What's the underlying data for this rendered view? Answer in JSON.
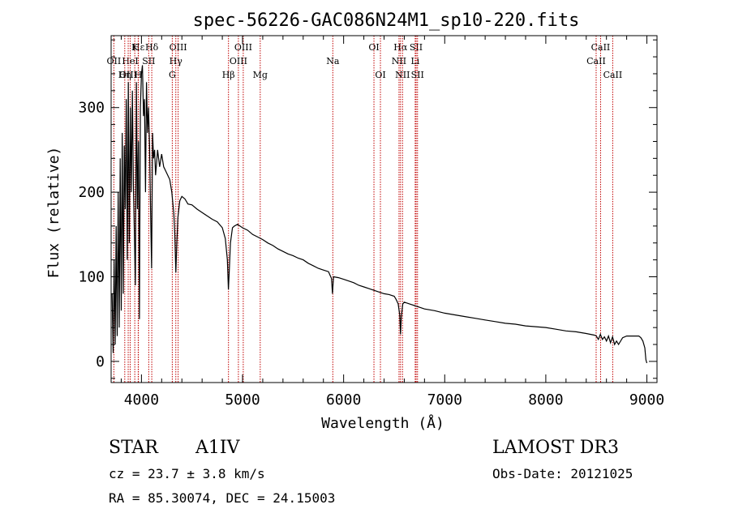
{
  "chart_data": {
    "type": "line",
    "title": "spec-56226-GAC086N24M1_sp10-220.fits",
    "xlabel": "Wavelength (Å)",
    "ylabel": "Flux (relative)",
    "xlim": [
      3700,
      9100
    ],
    "ylim": [
      -25,
      385
    ],
    "x_ticks": [
      4000,
      5000,
      6000,
      7000,
      8000,
      9000
    ],
    "x_tick_labels": [
      "4000",
      "5000",
      "6000",
      "7000",
      "8000",
      "9000"
    ],
    "y_ticks": [
      0,
      100,
      200,
      300
    ],
    "y_tick_labels": [
      "0",
      "100",
      "200",
      "300"
    ],
    "series": [
      {
        "name": "flux",
        "x": [
          3710,
          3720,
          3730,
          3740,
          3750,
          3760,
          3770,
          3780,
          3790,
          3800,
          3810,
          3820,
          3830,
          3840,
          3850,
          3860,
          3870,
          3880,
          3890,
          3900,
          3910,
          3920,
          3930,
          3940,
          3950,
          3960,
          3970,
          3980,
          3990,
          4000,
          4010,
          4020,
          4030,
          4040,
          4050,
          4060,
          4070,
          4080,
          4090,
          4100,
          4110,
          4120,
          4130,
          4140,
          4150,
          4160,
          4180,
          4200,
          4220,
          4240,
          4260,
          4280,
          4300,
          4320,
          4330,
          4340,
          4350,
          4360,
          4380,
          4400,
          4430,
          4460,
          4500,
          4550,
          4600,
          4650,
          4700,
          4750,
          4800,
          4830,
          4850,
          4860,
          4870,
          4880,
          4900,
          4920,
          4950,
          5000,
          5050,
          5100,
          5150,
          5200,
          5250,
          5300,
          5350,
          5400,
          5450,
          5500,
          5550,
          5600,
          5650,
          5700,
          5750,
          5800,
          5850,
          5880,
          5890,
          5900,
          5950,
          6000,
          6050,
          6100,
          6150,
          6200,
          6250,
          6300,
          6350,
          6400,
          6450,
          6500,
          6520,
          6540,
          6555,
          6563,
          6570,
          6585,
          6600,
          6650,
          6700,
          6750,
          6800,
          6900,
          7000,
          7100,
          7200,
          7300,
          7400,
          7500,
          7600,
          7700,
          7800,
          7900,
          8000,
          8100,
          8200,
          8300,
          8400,
          8480,
          8500,
          8520,
          8540,
          8560,
          8580,
          8600,
          8620,
          8640,
          8660,
          8680,
          8700,
          8720,
          8760,
          8800,
          8850,
          8880,
          8900,
          8920,
          8940,
          8960,
          8980,
          8990,
          9000
        ],
        "values": [
          80,
          10,
          120,
          20,
          160,
          30,
          200,
          40,
          240,
          60,
          270,
          80,
          255,
          180,
          310,
          120,
          330,
          140,
          300,
          200,
          320,
          210,
          150,
          90,
          330,
          180,
          260,
          50,
          300,
          340,
          350,
          290,
          310,
          200,
          330,
          270,
          300,
          255,
          180,
          110,
          270,
          240,
          250,
          220,
          235,
          250,
          230,
          245,
          230,
          225,
          220,
          215,
          200,
          175,
          150,
          105,
          140,
          170,
          190,
          195,
          192,
          186,
          185,
          180,
          176,
          172,
          168,
          165,
          158,
          145,
          120,
          85,
          110,
          140,
          158,
          160,
          162,
          158,
          155,
          150,
          147,
          144,
          140,
          137,
          133,
          130,
          127,
          125,
          122,
          120,
          116,
          113,
          110,
          108,
          106,
          98,
          80,
          100,
          99,
          97,
          95,
          93,
          90,
          88,
          86,
          84,
          82,
          80,
          79,
          77,
          73,
          68,
          55,
          32,
          52,
          68,
          70,
          68,
          66,
          64,
          62,
          60,
          57,
          55,
          53,
          51,
          49,
          47,
          45,
          44,
          42,
          41,
          40,
          38,
          36,
          35,
          33,
          31,
          30,
          26,
          32,
          26,
          29,
          24,
          30,
          22,
          29,
          20,
          24,
          20,
          28,
          30,
          30,
          30,
          30,
          30,
          28,
          24,
          16,
          2,
          -2
        ]
      }
    ],
    "line_markers": [
      {
        "label": "Hε",
        "wavelength": 3970,
        "row": 1
      },
      {
        "label": "K",
        "wavelength": 3934,
        "row": 1
      },
      {
        "label": "Hδ",
        "wavelength": 4102,
        "row": 1
      },
      {
        "label": "OIII",
        "wavelength": 4363,
        "row": 1
      },
      {
        "label": "OIII",
        "wavelength": 5007,
        "row": 1
      },
      {
        "label": "OI",
        "wavelength": 6300,
        "row": 1
      },
      {
        "label": "Hα",
        "wavelength": 6563,
        "row": 1
      },
      {
        "label": "SII",
        "wavelength": 6717,
        "row": 1
      },
      {
        "label": "CaII",
        "wavelength": 8542,
        "row": 1
      },
      {
        "label": "OII",
        "wavelength": 3727,
        "row": 2
      },
      {
        "label": "HeI",
        "wavelength": 3889,
        "row": 2
      },
      {
        "label": "SII",
        "wavelength": 4072,
        "row": 2
      },
      {
        "label": "Hγ",
        "wavelength": 4340,
        "row": 2
      },
      {
        "label": "OIII",
        "wavelength": 4959,
        "row": 2
      },
      {
        "label": "Na",
        "wavelength": 5893,
        "row": 2
      },
      {
        "label": "NII",
        "wavelength": 6548,
        "row": 2
      },
      {
        "label": "Li",
        "wavelength": 6708,
        "row": 2
      },
      {
        "label": "CaII",
        "wavelength": 8498,
        "row": 2
      },
      {
        "label": "OIII",
        "wavelength": 3869,
        "row": 3
      },
      {
        "label": "Hη",
        "wavelength": 3835,
        "row": 3
      },
      {
        "label": "H",
        "wavelength": 3968,
        "row": 3
      },
      {
        "label": "G",
        "wavelength": 4305,
        "row": 3
      },
      {
        "label": "Hβ",
        "wavelength": 4861,
        "row": 3
      },
      {
        "label": "Mg",
        "wavelength": 5175,
        "row": 3
      },
      {
        "label": "OI",
        "wavelength": 6364,
        "row": 3
      },
      {
        "label": "NII",
        "wavelength": 6583,
        "row": 3
      },
      {
        "label": "SII",
        "wavelength": 6731,
        "row": 3
      },
      {
        "label": "CaII",
        "wavelength": 8662,
        "row": 3
      }
    ],
    "grid": false,
    "legend": "none"
  },
  "info": {
    "object_class": "STAR",
    "subclass": "A1IV",
    "survey": "LAMOST DR3",
    "cz": "cz = 23.7 ± 3.8 km/s",
    "obs_date": "Obs-Date: 20121025",
    "coords": "RA =  85.30074, DEC =  24.15003"
  },
  "colors": {
    "line": "#000000",
    "marker": "#c00000",
    "axes": "#000000"
  }
}
